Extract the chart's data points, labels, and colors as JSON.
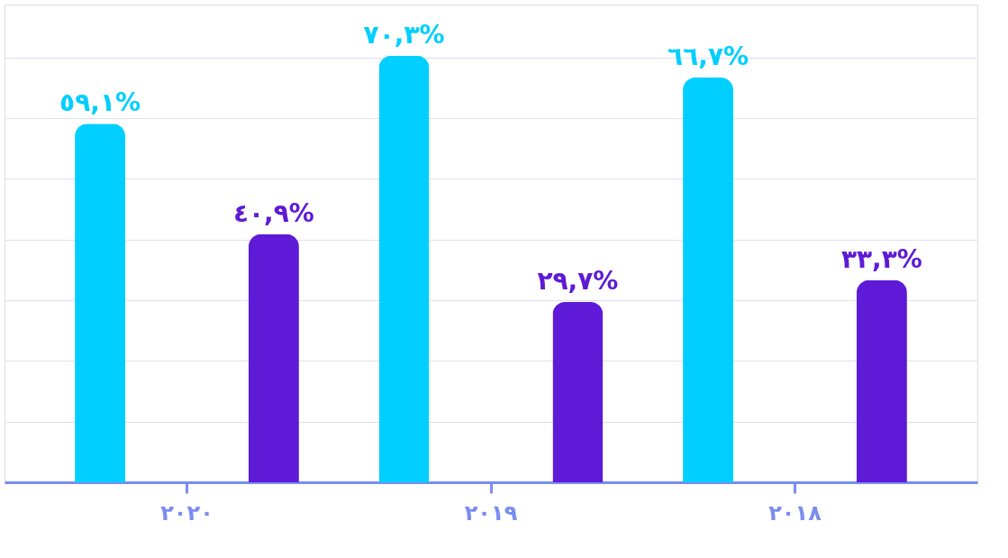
{
  "chart_data": {
    "type": "bar",
    "categories": [
      "٢٠٢٠",
      "٢٠١٩",
      "٢٠١٨"
    ],
    "series": [
      {
        "color": "#00cfff",
        "values": [
          59.1,
          70.3,
          66.7
        ],
        "value_labels": [
          "٥٩,١%",
          "٧٠,٣%",
          "٦٦,٧%"
        ]
      },
      {
        "color": "#5e1ad6",
        "values": [
          40.9,
          29.7,
          33.3
        ],
        "value_labels": [
          "٤٠,٩%",
          "٢٩,٧%",
          "٣٣,٣%"
        ]
      }
    ],
    "grid": "y",
    "tick_labels": "x"
  }
}
